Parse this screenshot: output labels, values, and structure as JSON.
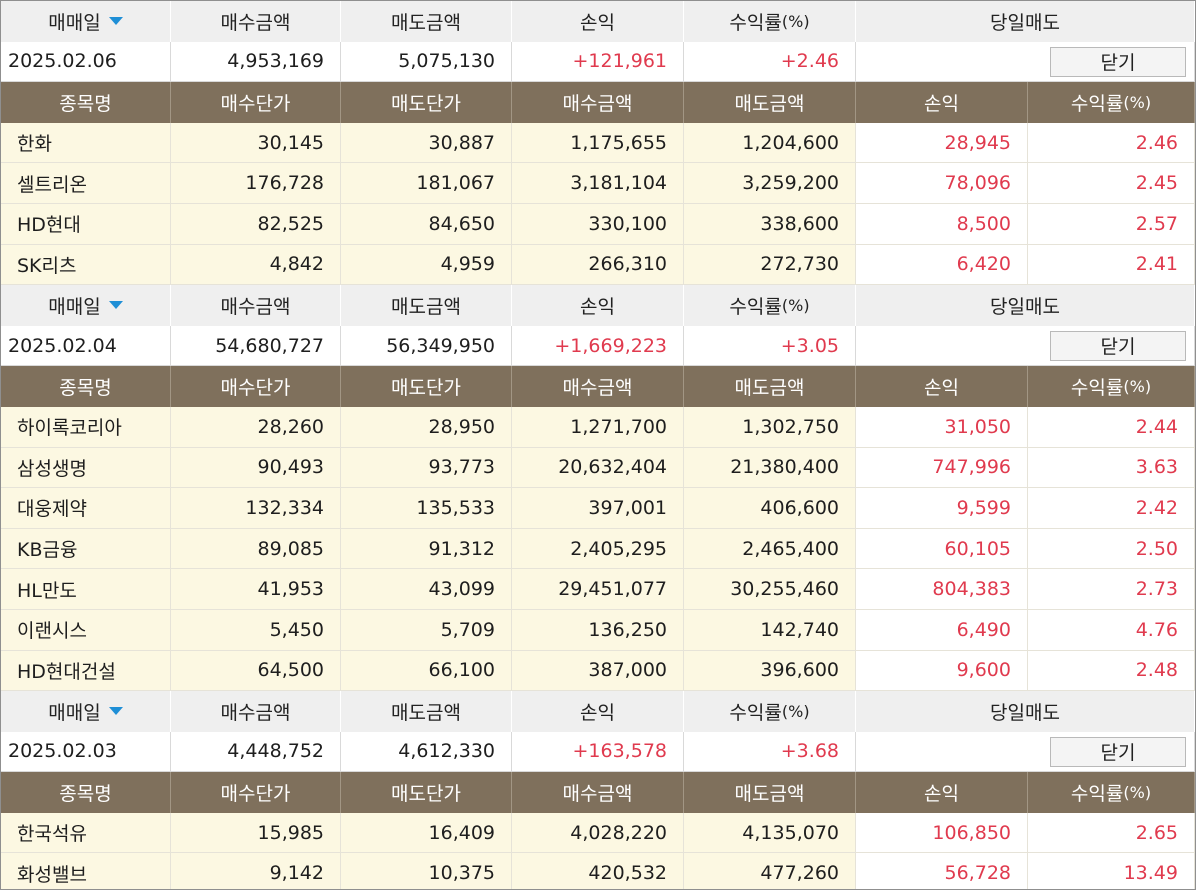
{
  "labels": {
    "date": "매매일",
    "buy_amount": "매수금액",
    "sell_amount": "매도금액",
    "profit": "손익",
    "rate": "수익률",
    "rate_unit": "(%)",
    "same_day_sell": "당일매도",
    "close": "닫기",
    "stock_name": "종목명",
    "buy_price": "매수단가",
    "sell_price": "매도단가"
  },
  "groups": [
    {
      "date": "2025.02.06",
      "buy_amount": "4,953,169",
      "sell_amount": "5,075,130",
      "profit": "+121,961",
      "rate": "+2.46",
      "items": [
        {
          "name": "한화",
          "buy_price": "30,145",
          "sell_price": "30,887",
          "buy_amount": "1,175,655",
          "sell_amount": "1,204,600",
          "profit": "28,945",
          "rate": "2.46"
        },
        {
          "name": "셀트리온",
          "buy_price": "176,728",
          "sell_price": "181,067",
          "buy_amount": "3,181,104",
          "sell_amount": "3,259,200",
          "profit": "78,096",
          "rate": "2.45"
        },
        {
          "name": "HD현대",
          "buy_price": "82,525",
          "sell_price": "84,650",
          "buy_amount": "330,100",
          "sell_amount": "338,600",
          "profit": "8,500",
          "rate": "2.57"
        },
        {
          "name": "SK리츠",
          "buy_price": "4,842",
          "sell_price": "4,959",
          "buy_amount": "266,310",
          "sell_amount": "272,730",
          "profit": "6,420",
          "rate": "2.41"
        }
      ]
    },
    {
      "date": "2025.02.04",
      "buy_amount": "54,680,727",
      "sell_amount": "56,349,950",
      "profit": "+1,669,223",
      "rate": "+3.05",
      "items": [
        {
          "name": "하이록코리아",
          "buy_price": "28,260",
          "sell_price": "28,950",
          "buy_amount": "1,271,700",
          "sell_amount": "1,302,750",
          "profit": "31,050",
          "rate": "2.44"
        },
        {
          "name": "삼성생명",
          "buy_price": "90,493",
          "sell_price": "93,773",
          "buy_amount": "20,632,404",
          "sell_amount": "21,380,400",
          "profit": "747,996",
          "rate": "3.63"
        },
        {
          "name": "대웅제약",
          "buy_price": "132,334",
          "sell_price": "135,533",
          "buy_amount": "397,001",
          "sell_amount": "406,600",
          "profit": "9,599",
          "rate": "2.42"
        },
        {
          "name": "KB금융",
          "buy_price": "89,085",
          "sell_price": "91,312",
          "buy_amount": "2,405,295",
          "sell_amount": "2,465,400",
          "profit": "60,105",
          "rate": "2.50"
        },
        {
          "name": "HL만도",
          "buy_price": "41,953",
          "sell_price": "43,099",
          "buy_amount": "29,451,077",
          "sell_amount": "30,255,460",
          "profit": "804,383",
          "rate": "2.73"
        },
        {
          "name": "이랜시스",
          "buy_price": "5,450",
          "sell_price": "5,709",
          "buy_amount": "136,250",
          "sell_amount": "142,740",
          "profit": "6,490",
          "rate": "4.76"
        },
        {
          "name": "HD현대건설",
          "buy_price": "64,500",
          "sell_price": "66,100",
          "buy_amount": "387,000",
          "sell_amount": "396,600",
          "profit": "9,600",
          "rate": "2.48"
        }
      ]
    },
    {
      "date": "2025.02.03",
      "buy_amount": "4,448,752",
      "sell_amount": "4,612,330",
      "profit": "+163,578",
      "rate": "+3.68",
      "items": [
        {
          "name": "한국석유",
          "buy_price": "15,985",
          "sell_price": "16,409",
          "buy_amount": "4,028,220",
          "sell_amount": "4,135,070",
          "profit": "106,850",
          "rate": "2.65"
        },
        {
          "name": "화성밸브",
          "buy_price": "9,142",
          "sell_price": "10,375",
          "buy_amount": "420,532",
          "sell_amount": "477,260",
          "profit": "56,728",
          "rate": "13.49"
        }
      ]
    }
  ],
  "colors": {
    "profit_text": "#e03a4e",
    "column_header_bg": "#7f705c",
    "group_header_bg": "#efefef",
    "item_cell_bg": "#fcf8e2",
    "sort_icon": "#1f8fd6"
  }
}
